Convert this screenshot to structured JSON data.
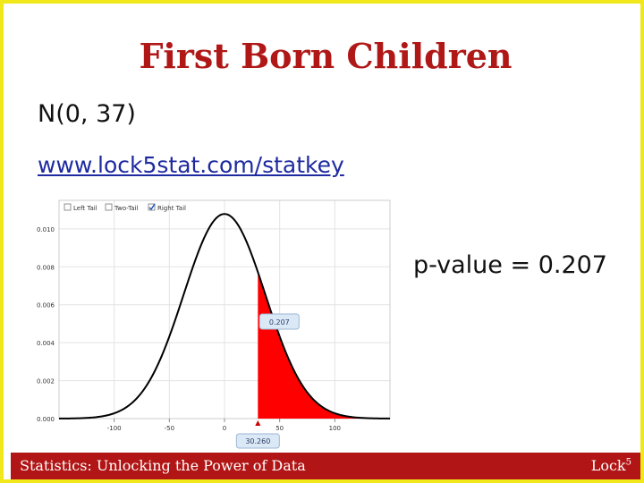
{
  "slide": {
    "title": "First Born Children",
    "distribution": "N(0, 37)",
    "url": "www.lock5stat.com/statkey",
    "pvalue_text": "p-value = 0.207"
  },
  "footer": {
    "left": "Statistics: Unlocking the Power of Data",
    "brand": "Lock",
    "brand_sup": "5"
  },
  "colors": {
    "title": "#b01818",
    "tail_fill": "#ff0000",
    "footer_bg": "#b21515",
    "border": "#f0e81a"
  },
  "chart_data": {
    "type": "area",
    "distribution": {
      "family": "normal",
      "mean": 0,
      "sd": 37
    },
    "tail": "right",
    "tail_options": [
      {
        "label": "Left Tail",
        "checked": false
      },
      {
        "label": "Two-Tail",
        "checked": false
      },
      {
        "label": "Right Tail",
        "checked": true
      }
    ],
    "cutoff": 30.26,
    "cutoff_label": "30.260",
    "tail_area_label": "0.207",
    "xlim": [
      -150,
      150
    ],
    "ylim": [
      0,
      0.0115
    ],
    "x_ticks": [
      -100,
      -50,
      0,
      50,
      100
    ],
    "x_tick_labels": [
      "-100",
      "-50",
      "0",
      "50",
      "100"
    ],
    "y_ticks": [
      0,
      0.002,
      0.004,
      0.006,
      0.008,
      0.01
    ],
    "y_tick_labels": [
      "0.000",
      "0.002",
      "0.004",
      "0.006",
      "0.008",
      "0.010"
    ],
    "grid": true
  }
}
